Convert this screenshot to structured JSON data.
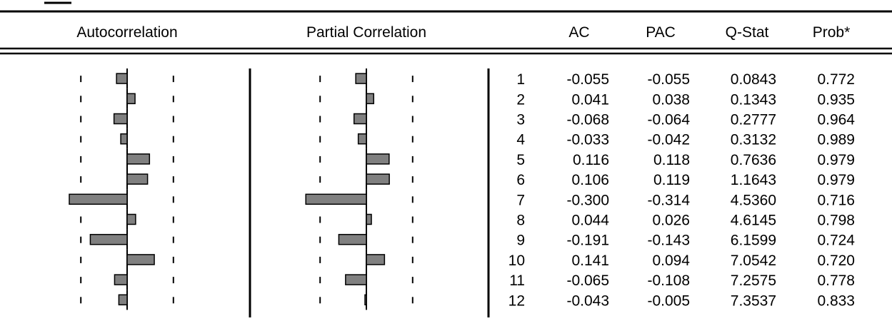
{
  "chart_data": {
    "type": "bar",
    "columns": {
      "ac_plot": "Autocorrelation",
      "pac_plot": "Partial Correlation",
      "lag": "",
      "ac": "AC",
      "pac": "PAC",
      "qstat": "Q-Stat",
      "prob": "Prob*"
    },
    "rows": [
      {
        "lag": "1",
        "ac": "-0.055",
        "pac": "-0.055",
        "qstat": "0.0843",
        "prob": "0.772"
      },
      {
        "lag": "2",
        "ac": "0.041",
        "pac": "0.038",
        "qstat": "0.1343",
        "prob": "0.935"
      },
      {
        "lag": "3",
        "ac": "-0.068",
        "pac": "-0.064",
        "qstat": "0.2777",
        "prob": "0.964"
      },
      {
        "lag": "4",
        "ac": "-0.033",
        "pac": "-0.042",
        "qstat": "0.3132",
        "prob": "0.989"
      },
      {
        "lag": "5",
        "ac": "0.116",
        "pac": "0.118",
        "qstat": "0.7636",
        "prob": "0.979"
      },
      {
        "lag": "6",
        "ac": "0.106",
        "pac": "0.119",
        "qstat": "1.1643",
        "prob": "0.979"
      },
      {
        "lag": "7",
        "ac": "-0.300",
        "pac": "-0.314",
        "qstat": "4.5360",
        "prob": "0.716"
      },
      {
        "lag": "8",
        "ac": "0.044",
        "pac": "0.026",
        "qstat": "4.6145",
        "prob": "0.798"
      },
      {
        "lag": "9",
        "ac": "-0.191",
        "pac": "-0.143",
        "qstat": "6.1599",
        "prob": "0.724"
      },
      {
        "lag": "10",
        "ac": "0.141",
        "pac": "0.094",
        "qstat": "7.0542",
        "prob": "0.720"
      },
      {
        "lag": "11",
        "ac": "-0.065",
        "pac": "-0.108",
        "qstat": "7.2575",
        "prob": "0.778"
      },
      {
        "lag": "12",
        "ac": "-0.043",
        "pac": "-0.005",
        "qstat": "7.3537",
        "prob": "0.833"
      }
    ],
    "bar_color": "#808080",
    "bar_border": "#000000"
  }
}
